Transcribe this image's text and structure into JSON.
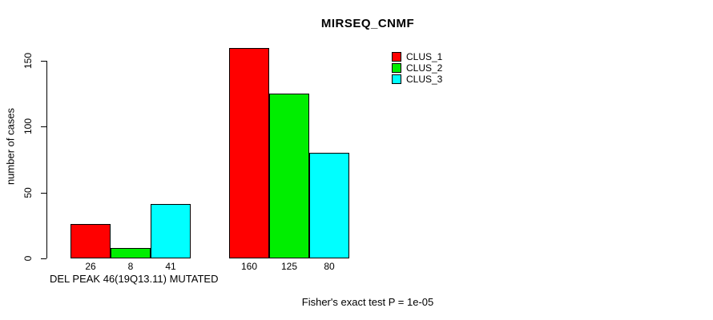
{
  "chart_data": {
    "type": "bar",
    "title": "MIRSEQ_CNMF",
    "xlabel": "DEL PEAK 46(19Q13.11) MUTATED",
    "ylabel": "number of cases",
    "annotation": "Fisher's exact test P = 1e-05",
    "ylim": [
      0,
      165
    ],
    "yticks": [
      0,
      50,
      100,
      150
    ],
    "ytick_labels": [
      "0",
      "50",
      "100",
      "150"
    ],
    "grid": false,
    "legend_position": "top-right",
    "legend": [
      {
        "label": "CLUS_1",
        "color": "#FF0000"
      },
      {
        "label": "CLUS_2",
        "color": "#00EE00"
      },
      {
        "label": "CLUS_3",
        "color": "#00FFFF"
      }
    ],
    "series": [
      {
        "name": "CLUS_1",
        "color": "#FF0000",
        "values": [
          26,
          160
        ]
      },
      {
        "name": "CLUS_2",
        "color": "#00EE00",
        "values": [
          8,
          125
        ]
      },
      {
        "name": "CLUS_3",
        "color": "#00FFFF",
        "values": [
          41,
          80
        ]
      }
    ],
    "groups": [
      {
        "bar_labels": [
          "26",
          "8",
          "41"
        ],
        "values": [
          26,
          8,
          41
        ]
      },
      {
        "bar_labels": [
          "160",
          "125",
          "80"
        ],
        "values": [
          160,
          125,
          80
        ]
      }
    ]
  }
}
